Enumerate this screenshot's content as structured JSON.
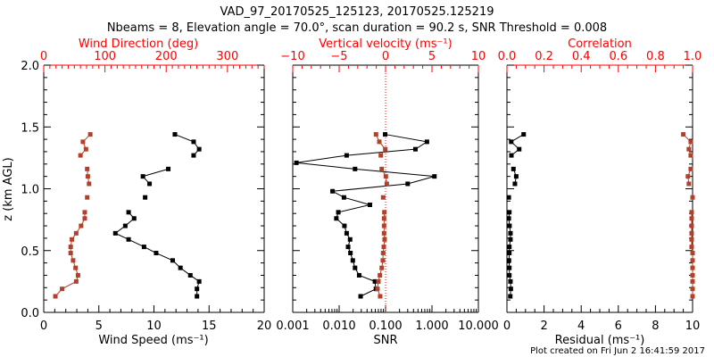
{
  "chart_data": [
    {
      "panel": "wind",
      "type": "line",
      "title": "VAD_97_20170525_125123, 20170525.125219",
      "subtitle": "Nbeams = 8, Elevation angle = 70.0°, scan duration = 90.2 s, SNR Threshold = 0.008",
      "ylabel": "z (km AGL)",
      "ylim": [
        0,
        2
      ],
      "yticks": [
        "0.0",
        "0.5",
        "1.0",
        "1.5",
        "2.0"
      ],
      "xlabel": "Wind Speed (ms⁻¹)",
      "xlim": [
        0,
        20
      ],
      "xticks": [
        "0",
        "5",
        "10",
        "15",
        "20"
      ],
      "top_xlabel": "Wind Direction (deg)",
      "top_xlim": [
        0,
        360
      ],
      "top_xticks": [
        "0",
        "100",
        "200",
        "300"
      ],
      "height": [
        1.44,
        1.38,
        1.32,
        1.27,
        1.16,
        1.1,
        1.04,
        0.93,
        0.81,
        0.76,
        0.7,
        0.64,
        0.59,
        0.53,
        0.48,
        0.42,
        0.36,
        0.3,
        0.25,
        0.19,
        0.13
      ],
      "series": [
        {
          "name": "Wind Speed",
          "axis": "bottom",
          "color": "#000000",
          "values": [
            11.9,
            13.6,
            14.1,
            13.6,
            11.3,
            9.0,
            9.6,
            9.2,
            7.7,
            8.2,
            7.4,
            6.5,
            7.7,
            9.1,
            10.2,
            11.7,
            12.4,
            13.3,
            14.1,
            13.9,
            13.9
          ]
        },
        {
          "name": "Wind Direction",
          "axis": "top",
          "color": "#b5402a",
          "values": [
            76,
            64,
            69,
            60,
            71,
            72,
            74,
            71,
            67,
            67,
            61,
            53,
            46,
            44,
            44,
            48,
            52,
            56,
            53,
            30,
            19
          ]
        }
      ],
      "segments_break_after": [
        3,
        6,
        7
      ]
    },
    {
      "panel": "snr",
      "type": "line",
      "xlabel": "SNR",
      "xscale": "log",
      "xlim": [
        0.001,
        10
      ],
      "xticks": [
        "0.001",
        "0.010",
        "0.100",
        "1.000",
        "10.000"
      ],
      "top_xlabel": "Vertical velocity (ms⁻¹)",
      "top_xlim": [
        -10,
        10
      ],
      "top_xticks": [
        "−10",
        "−5",
        "0",
        "5",
        "10"
      ],
      "reference_line": {
        "axis": "bottom",
        "value": 0.1,
        "style": "dotted",
        "color": "#ff0000"
      },
      "series": [
        {
          "name": "SNR",
          "axis": "bottom",
          "color": "#000000",
          "height": [
            1.44,
            1.38,
            1.32,
            1.27,
            1.21,
            1.16,
            1.1,
            1.04,
            0.98,
            0.93,
            0.87,
            0.81,
            0.76,
            0.7,
            0.64,
            0.59,
            0.53,
            0.48,
            0.42,
            0.36,
            0.3,
            0.25,
            0.19,
            0.13
          ],
          "values": [
            0.098,
            0.78,
            0.44,
            0.0145,
            0.0012,
            0.022,
            1.13,
            0.3,
            0.0072,
            0.0127,
            0.046,
            0.0096,
            0.0087,
            0.013,
            0.0145,
            0.0172,
            0.0156,
            0.0175,
            0.0197,
            0.022,
            0.027,
            0.059,
            0.062,
            0.029
          ]
        },
        {
          "name": "Vertical velocity",
          "axis": "top",
          "color": "#b5402a",
          "height": [
            1.44,
            1.38,
            1.32,
            1.27,
            1.16,
            1.1,
            1.04,
            0.93,
            0.81,
            0.76,
            0.7,
            0.64,
            0.59,
            0.53,
            0.48,
            0.42,
            0.36,
            0.3,
            0.25,
            0.19,
            0.13
          ],
          "values": [
            -1.03,
            -0.67,
            -0.03,
            -0.51,
            -0.41,
            0.03,
            0.13,
            -0.26,
            -0.13,
            -0.16,
            -0.16,
            -0.16,
            -0.1,
            -0.19,
            -0.26,
            -0.29,
            -0.41,
            -0.61,
            -0.77,
            -0.87,
            -0.58
          ],
          "segments_break_after": [
            3,
            6,
            7
          ]
        }
      ]
    },
    {
      "panel": "residual",
      "type": "line",
      "xlabel": "Residual (ms⁻¹)",
      "xlim": [
        0,
        10
      ],
      "xticks": [
        "0",
        "2",
        "4",
        "6",
        "8",
        "10"
      ],
      "top_xlabel": "Correlation",
      "top_xlim": [
        0,
        1
      ],
      "top_xticks": [
        "0.0",
        "0.2",
        "0.4",
        "0.6",
        "0.8",
        "1.0"
      ],
      "height": [
        1.44,
        1.38,
        1.32,
        1.27,
        1.16,
        1.1,
        1.04,
        0.93,
        0.81,
        0.76,
        0.7,
        0.64,
        0.59,
        0.53,
        0.48,
        0.42,
        0.36,
        0.3,
        0.25,
        0.19,
        0.13
      ],
      "series": [
        {
          "name": "Residual",
          "axis": "bottom",
          "color": "#000000",
          "values": [
            0.9,
            0.23,
            0.66,
            0.24,
            0.35,
            0.5,
            0.43,
            0.1,
            0.13,
            0.1,
            0.14,
            0.19,
            0.19,
            0.13,
            0.13,
            0.11,
            0.13,
            0.13,
            0.19,
            0.21,
            0.18
          ]
        },
        {
          "name": "Correlation",
          "axis": "top",
          "color": "#b5402a",
          "values": [
            0.95,
            0.99,
            0.98,
            0.99,
            0.99,
            0.975,
            0.98,
            1.0,
            0.995,
            0.995,
            0.995,
            0.995,
            0.995,
            0.995,
            1.0,
            1.0,
            1.0,
            1.0,
            1.0,
            1.0,
            1.0
          ]
        }
      ],
      "segments_break_after": [
        3,
        6,
        7
      ]
    }
  ],
  "footer": "Plot created on Fri Jun  2 16:41:59 2017"
}
